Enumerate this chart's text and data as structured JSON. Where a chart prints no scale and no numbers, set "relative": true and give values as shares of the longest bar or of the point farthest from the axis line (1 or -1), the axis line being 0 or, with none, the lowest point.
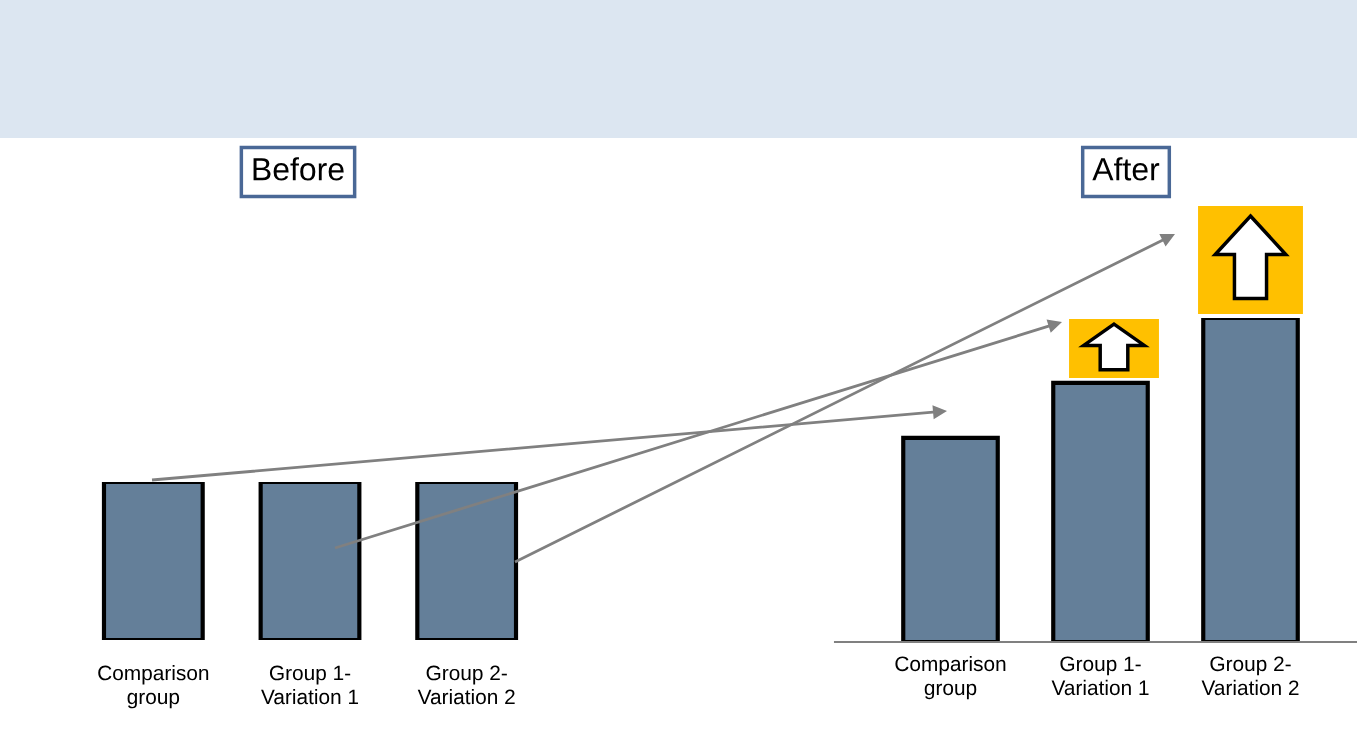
{
  "chart_data": [
    {
      "type": "bar",
      "title": "Before",
      "relative": true,
      "categories": [
        "Comparison\ngroup",
        "Group 1-\nVariation 1",
        "Group 2-\nVariation 2"
      ],
      "values": [
        1,
        1,
        1
      ],
      "color": "#647f99",
      "grid": false,
      "legend": false
    },
    {
      "type": "bar",
      "title": "After",
      "relative": true,
      "categories": [
        "Comparison\ngroup",
        "Group 1-\nVariation 1",
        "Group 2-\nVariation 2"
      ],
      "values": [
        0.63,
        0.8,
        1
      ],
      "color": "#647f99",
      "grid": false,
      "legend": false
    }
  ]
}
